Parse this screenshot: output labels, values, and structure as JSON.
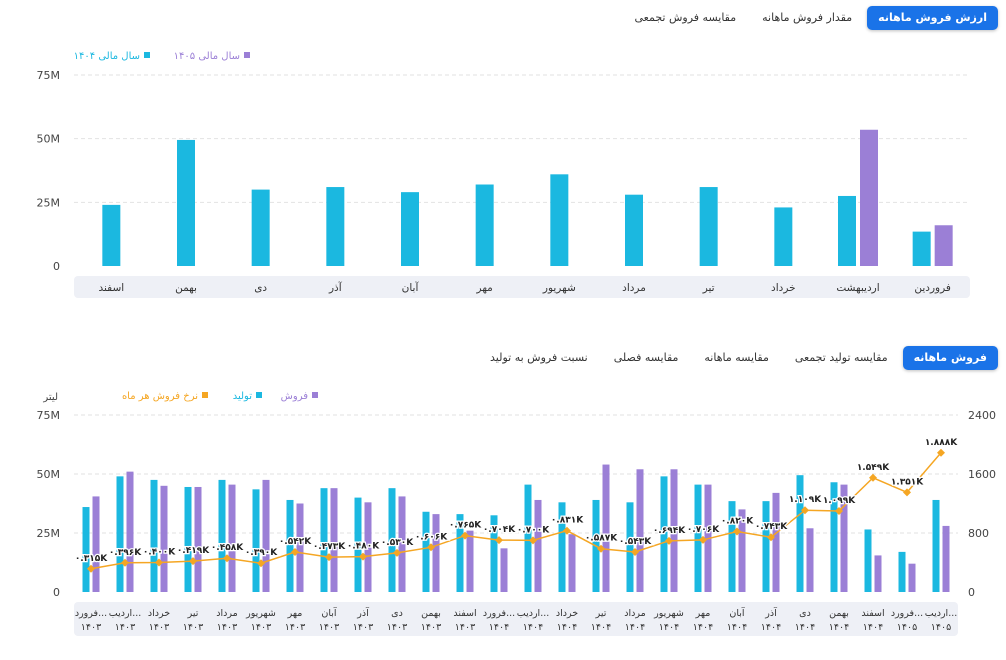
{
  "top_tabs": [
    {
      "label": "ارزش فروش ماهانه",
      "active": true
    },
    {
      "label": "مقدار فروش ماهانه",
      "active": false
    },
    {
      "label": "مقایسه فروش تجمعی",
      "active": false
    }
  ],
  "bottom_tabs": [
    {
      "label": "فروش ماهانه",
      "active": true
    },
    {
      "label": "مقایسه تولید تجمعی",
      "active": false
    },
    {
      "label": "مقایسه ماهانه",
      "active": false
    },
    {
      "label": "مقایسه فصلی",
      "active": false
    },
    {
      "label": "نسبت فروش به تولید",
      "active": false
    }
  ],
  "colors": {
    "cyan": "#1bb8e0",
    "purple": "#9b7fd6",
    "orange": "#f5a623",
    "axis_band": "#eef0f6",
    "grid": "#e2e2e2",
    "accent": "#1a73e8"
  },
  "chart_data": [
    {
      "type": "bar",
      "categories": [
        "فروردین",
        "اردیبهشت",
        "خرداد",
        "تیر",
        "مرداد",
        "شهریور",
        "مهر",
        "آبان",
        "آذر",
        "دی",
        "بهمن",
        "اسفند"
      ],
      "series": [
        {
          "name": "سال مالی ۱۴۰۴",
          "color": "#1bb8e0",
          "values": [
            13.5,
            27.5,
            23,
            31,
            28,
            36,
            32,
            29,
            31,
            30,
            49.5,
            24
          ]
        },
        {
          "name": "سال مالی ۱۴۰۵",
          "color": "#9b7fd6",
          "values": [
            16,
            53.5,
            null,
            null,
            null,
            null,
            null,
            null,
            null,
            null,
            null,
            null
          ]
        }
      ],
      "ylim": [
        0,
        75
      ],
      "yticks": [
        "0",
        "25M",
        "50M",
        "75M"
      ],
      "legend_position": "top-left"
    },
    {
      "type": "bar",
      "categories": [
        "فرورد... ۱۴۰۳",
        "اردیب... ۱۴۰۳",
        "خرداد ۱۴۰۳",
        "تیر ۱۴۰۳",
        "مرداد ۱۴۰۳",
        "شهریور ۱۴۰۳",
        "مهر ۱۴۰۳",
        "آبان ۱۴۰۳",
        "آذر ۱۴۰۳",
        "دی ۱۴۰۳",
        "بهمن ۱۴۰۳",
        "اسفند ۱۴۰۳",
        "فرورد... ۱۴۰۴",
        "اردیب... ۱۴۰۴",
        "خرداد ۱۴۰۴",
        "تیر ۱۴۰۴",
        "مرداد ۱۴۰۴",
        "شهریور ۱۴۰۴",
        "مهر ۱۴۰۴",
        "آبان ۱۴۰۴",
        "آذر ۱۴۰۴",
        "دی ۱۴۰۴",
        "بهمن ۱۴۰۴",
        "اسفند ۱۴۰۴",
        "فرورد... ۱۴۰۵",
        "اردیب... ۱۴۰۵"
      ],
      "series": [
        {
          "name": "تولید",
          "color": "#1bb8e0",
          "values": [
            36,
            49,
            47.5,
            44.5,
            47.5,
            43.5,
            39,
            44,
            40,
            44,
            34,
            33,
            32.5,
            45.5,
            38,
            39,
            38,
            49,
            45.5,
            38.5,
            38.5,
            49.5,
            46.5,
            26.5,
            17,
            39
          ]
        },
        {
          "name": "فروش",
          "color": "#9b7fd6",
          "values": [
            40.5,
            51,
            45,
            44.5,
            45.5,
            47.5,
            37.5,
            44,
            38,
            40.5,
            33,
            26,
            18.5,
            39,
            24.5,
            54,
            52,
            52,
            45.5,
            35,
            42,
            27,
            45.5,
            15.5,
            12,
            28
          ]
        },
        {
          "name": "نرخ فروش هر ماه",
          "color": "#f5a623",
          "values": [
            315,
            396,
            400,
            419,
            458,
            390,
            542,
            473,
            480,
            530,
            606,
            765,
            704,
            700,
            831,
            587,
            543,
            694,
            706,
            820,
            743,
            1109,
            1099,
            1549,
            1351,
            1888
          ]
        }
      ],
      "point_labels": [
        "۰.۳۱۵K",
        "۰.۳۹۶K",
        "۰.۴۰۰K",
        "۰.۴۱۹K",
        "۰.۴۵۸K",
        "۰.۳۹۰K",
        "۰.۵۴۲K",
        "۰.۴۷۳K",
        "۰.۴۸۰K",
        "۰.۵۳۰K",
        "۰.۶۰۶K",
        "۰.۷۶۵K",
        "۰.۷۰۴K",
        "۰.۷۰۰K",
        "۰.۸۳۱K",
        "۰.۵۸۷K",
        "۰.۵۴۳K",
        "۰.۶۹۴K",
        "۰.۷۰۶K",
        "۰.۸۲۰K",
        "۰.۷۴۳K",
        "۱.۱۰۹K",
        "۱.۰۹۹K",
        "۱.۵۴۹K",
        "۱.۳۵۱K",
        "۱.۸۸۸K"
      ],
      "ylim_left": [
        0,
        75
      ],
      "yticks_left": [
        "0",
        "25M",
        "50M",
        "75M"
      ],
      "ylim_right": [
        0,
        2400
      ],
      "yticks_right": [
        "0",
        "800",
        "1600",
        "2400"
      ],
      "ylabel_left": "لیتر",
      "legend_position": "top-left"
    }
  ]
}
